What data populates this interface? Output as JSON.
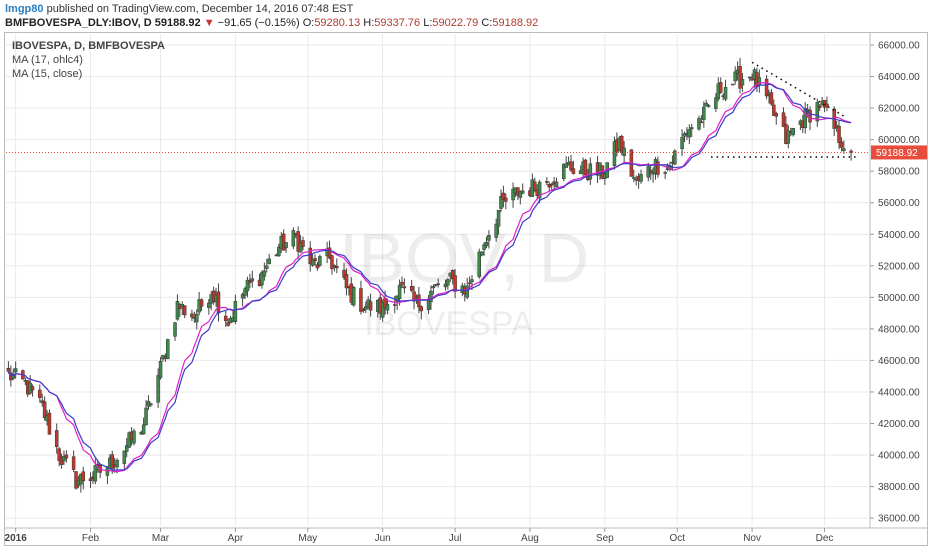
{
  "header": {
    "user": "lmgp80",
    "published": "published on TradingView.com, December 14, 2016 07:48 EST",
    "symbol": "BMFBOVESPA_DLY:IBOV, D",
    "last": "59188.92",
    "change": "−91.65 (−0.15%)",
    "o_label": "O:",
    "o_value": "59280.13",
    "h_label": "H:",
    "h_value": "59337.76",
    "l_label": "L:",
    "l_value": "59022.79",
    "c_label": "C:",
    "c_value": "59188.92"
  },
  "legend": {
    "title": "IBOVESPA, D, BMFBOVESPA",
    "ma1": "MA (17, ohlc4)",
    "ma2": "MA (15, close)"
  },
  "watermark": {
    "big": "IBOV, D",
    "small": "IBOVESPA"
  },
  "price_tag": "59188.92",
  "colors": {
    "up": "#3f8a4a",
    "down": "#c0392b",
    "ma17": "#3b3bcc",
    "ma15": "#e020c8",
    "price_line": "#e74c3c",
    "grid": "#e9e9e9",
    "trend": "#000000"
  },
  "chart_data": {
    "type": "candlestick",
    "title": "IBOVESPA, D, BMFBOVESPA",
    "x_tick_labels": [
      "2016",
      "Feb",
      "Mar",
      "Apr",
      "May",
      "Jun",
      "Jul",
      "Aug",
      "Sep",
      "Oct",
      "Nov",
      "Dec"
    ],
    "x_tick_dates": [
      "2016-01-01",
      "2016-02-01",
      "2016-03-01",
      "2016-04-01",
      "2016-05-01",
      "2016-06-01",
      "2016-07-01",
      "2016-08-01",
      "2016-09-01",
      "2016-10-01",
      "2016-11-01",
      "2016-12-01"
    ],
    "y_tick_labels": [
      "36000.00",
      "38000.00",
      "40000.00",
      "42000.00",
      "44000.00",
      "46000.00",
      "48000.00",
      "50000.00",
      "52000.00",
      "54000.00",
      "56000.00",
      "58000.00",
      "60000.00",
      "62000.00",
      "64000.00",
      "66000.00"
    ],
    "ylim": [
      35500,
      66700
    ],
    "xlim": [
      "2015-12-28",
      "2016-12-19"
    ],
    "last_close": 59188.92,
    "close_path": [
      [
        "2015-12-29",
        45100
      ],
      [
        "2016-01-05",
        44500
      ],
      [
        "2016-01-12",
        43000
      ],
      [
        "2016-01-19",
        40000
      ],
      [
        "2016-01-26",
        38400
      ],
      [
        "2016-02-02",
        38700
      ],
      [
        "2016-02-09",
        39400
      ],
      [
        "2016-02-16",
        40600
      ],
      [
        "2016-02-23",
        42000
      ],
      [
        "2016-03-01",
        45500
      ],
      [
        "2016-03-08",
        49500
      ],
      [
        "2016-03-15",
        48800
      ],
      [
        "2016-03-22",
        50500
      ],
      [
        "2016-03-29",
        48500
      ],
      [
        "2016-04-05",
        50500
      ],
      [
        "2016-04-12",
        51500
      ],
      [
        "2016-04-19",
        53200
      ],
      [
        "2016-04-26",
        53800
      ],
      [
        "2016-05-03",
        52000
      ],
      [
        "2016-05-10",
        52500
      ],
      [
        "2016-05-17",
        50500
      ],
      [
        "2016-05-24",
        49500
      ],
      [
        "2016-06-01",
        49300
      ],
      [
        "2016-06-08",
        50500
      ],
      [
        "2016-06-15",
        49500
      ],
      [
        "2016-06-22",
        50500
      ],
      [
        "2016-06-29",
        51000
      ],
      [
        "2016-07-06",
        50500
      ],
      [
        "2016-07-13",
        53500
      ],
      [
        "2016-07-20",
        55800
      ],
      [
        "2016-07-27",
        56700
      ],
      [
        "2016-08-03",
        57000
      ],
      [
        "2016-08-10",
        57600
      ],
      [
        "2016-08-17",
        58300
      ],
      [
        "2016-08-24",
        58000
      ],
      [
        "2016-08-31",
        57900
      ],
      [
        "2016-09-07",
        59800
      ],
      [
        "2016-09-14",
        57200
      ],
      [
        "2016-09-21",
        58400
      ],
      [
        "2016-09-28",
        58400
      ],
      [
        "2016-10-05",
        60600
      ],
      [
        "2016-10-12",
        61500
      ],
      [
        "2016-10-19",
        63300
      ],
      [
        "2016-10-26",
        63800
      ],
      [
        "2016-11-01",
        64200
      ],
      [
        "2016-11-08",
        62200
      ],
      [
        "2016-11-15",
        60000
      ],
      [
        "2016-11-22",
        61300
      ],
      [
        "2016-11-29",
        62300
      ],
      [
        "2016-12-06",
        60400
      ],
      [
        "2016-12-12",
        59189
      ]
    ],
    "trendlines": [
      {
        "name": "descending resistance",
        "from": [
          "2016-11-01",
          64900
        ],
        "to": [
          "2016-12-09",
          61500
        ]
      },
      {
        "name": "horizontal support",
        "from": [
          "2016-10-15",
          58900
        ],
        "to": [
          "2016-12-15",
          58900
        ]
      }
    ],
    "series": [
      {
        "name": "MA (17, ohlc4)"
      },
      {
        "name": "MA (15, close)"
      }
    ]
  }
}
